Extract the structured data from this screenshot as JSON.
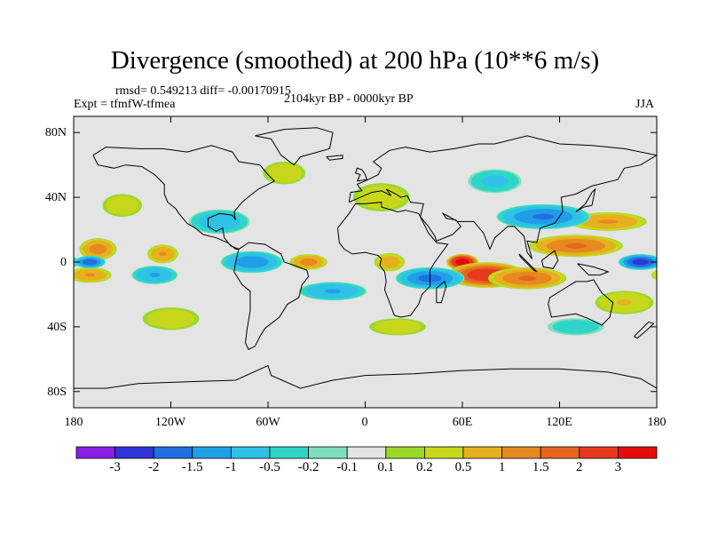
{
  "title": "Divergence (smoothed) at 200 hPa (10**6 m/s)",
  "stats": "rmsd= 0.549213  diff= -0.00170915",
  "experiment": "Expt = tfmfW-tfmea",
  "period": "2104kyr BP - 0000kyr BP",
  "season": "JJA",
  "lat_labels": [
    "80N",
    "40N",
    "0",
    "40S",
    "80S"
  ],
  "lon_labels": [
    "180",
    "120W",
    "60W",
    "0",
    "60E",
    "120E",
    "180"
  ],
  "colorbar": {
    "labels": [
      "-3",
      "-2",
      "-1.5",
      "-1",
      "-0.5",
      "-0.2",
      "-0.1",
      "0.1",
      "0.2",
      "0.5",
      "1",
      "1.5",
      "2",
      "3"
    ],
    "colors": [
      "#8c1ee6",
      "#2f35d8",
      "#1f70e0",
      "#1f9fe6",
      "#2fc1e6",
      "#2fd6c8",
      "#7fe0c0",
      "#e4e4e4",
      "#9bd92a",
      "#c9d71c",
      "#e6b11e",
      "#e6891e",
      "#e6661e",
      "#e63a1e",
      "#e60a0a"
    ]
  },
  "chart_data": {
    "type": "heatmap",
    "variable": "Divergence (smoothed) at 200 hPa",
    "units": "10**6 m/s",
    "lat_range": [
      -90,
      90
    ],
    "lon_range": [
      -180,
      180
    ],
    "contour_levels": [
      -3,
      -2,
      -1.5,
      -1,
      -0.5,
      -0.2,
      -0.1,
      0.1,
      0.2,
      0.5,
      1,
      1.5,
      2,
      3
    ],
    "features": [
      {
        "lon": 60,
        "lat": 0,
        "value": 3.5,
        "rx": 10,
        "ry": 5
      },
      {
        "lon": 75,
        "lat": -8,
        "value": 2.5,
        "rx": 25,
        "ry": 8
      },
      {
        "lon": 100,
        "lat": -10,
        "value": 1.5,
        "rx": 25,
        "ry": 7
      },
      {
        "lon": 130,
        "lat": 10,
        "value": 1.5,
        "rx": 30,
        "ry": 7
      },
      {
        "lon": 150,
        "lat": 25,
        "value": 1.0,
        "rx": 25,
        "ry": 6
      },
      {
        "lon": -165,
        "lat": 8,
        "value": 1.2,
        "rx": 12,
        "ry": 7
      },
      {
        "lon": -125,
        "lat": 5,
        "value": 1.0,
        "rx": 10,
        "ry": 6
      },
      {
        "lon": -35,
        "lat": 0,
        "value": 1.2,
        "rx": 12,
        "ry": 5
      },
      {
        "lon": 15,
        "lat": 0,
        "value": 0.8,
        "rx": 10,
        "ry": 6
      },
      {
        "lon": -170,
        "lat": -8,
        "value": 1.0,
        "rx": 14,
        "ry": 5
      },
      {
        "lon": 170,
        "lat": 0,
        "value": -2.2,
        "rx": 14,
        "ry": 5
      },
      {
        "lon": -170,
        "lat": 0,
        "value": -1.8,
        "rx": 10,
        "ry": 4
      },
      {
        "lon": 40,
        "lat": -10,
        "value": -1.6,
        "rx": 22,
        "ry": 7
      },
      {
        "lon": -70,
        "lat": 0,
        "value": -1.3,
        "rx": 20,
        "ry": 7
      },
      {
        "lon": -130,
        "lat": -8,
        "value": -1.0,
        "rx": 15,
        "ry": 6
      },
      {
        "lon": -20,
        "lat": -18,
        "value": -1.0,
        "rx": 22,
        "ry": 6
      },
      {
        "lon": 110,
        "lat": 28,
        "value": -1.5,
        "rx": 30,
        "ry": 8
      },
      {
        "lon": 80,
        "lat": 50,
        "value": -0.6,
        "rx": 18,
        "ry": 8
      },
      {
        "lon": -90,
        "lat": 25,
        "value": -0.8,
        "rx": 20,
        "ry": 8
      },
      {
        "lon": 10,
        "lat": 40,
        "value": 0.4,
        "rx": 20,
        "ry": 10
      },
      {
        "lon": -50,
        "lat": 55,
        "value": 0.4,
        "rx": 15,
        "ry": 8
      },
      {
        "lon": 160,
        "lat": -25,
        "value": 0.5,
        "rx": 20,
        "ry": 8
      },
      {
        "lon": -120,
        "lat": -35,
        "value": 0.4,
        "rx": 20,
        "ry": 8
      },
      {
        "lon": 20,
        "lat": -40,
        "value": 0.4,
        "rx": 20,
        "ry": 6
      },
      {
        "lon": 130,
        "lat": -40,
        "value": -0.4,
        "rx": 20,
        "ry": 6
      },
      {
        "lon": -150,
        "lat": 35,
        "value": 0.4,
        "rx": 14,
        "ry": 8
      }
    ]
  }
}
